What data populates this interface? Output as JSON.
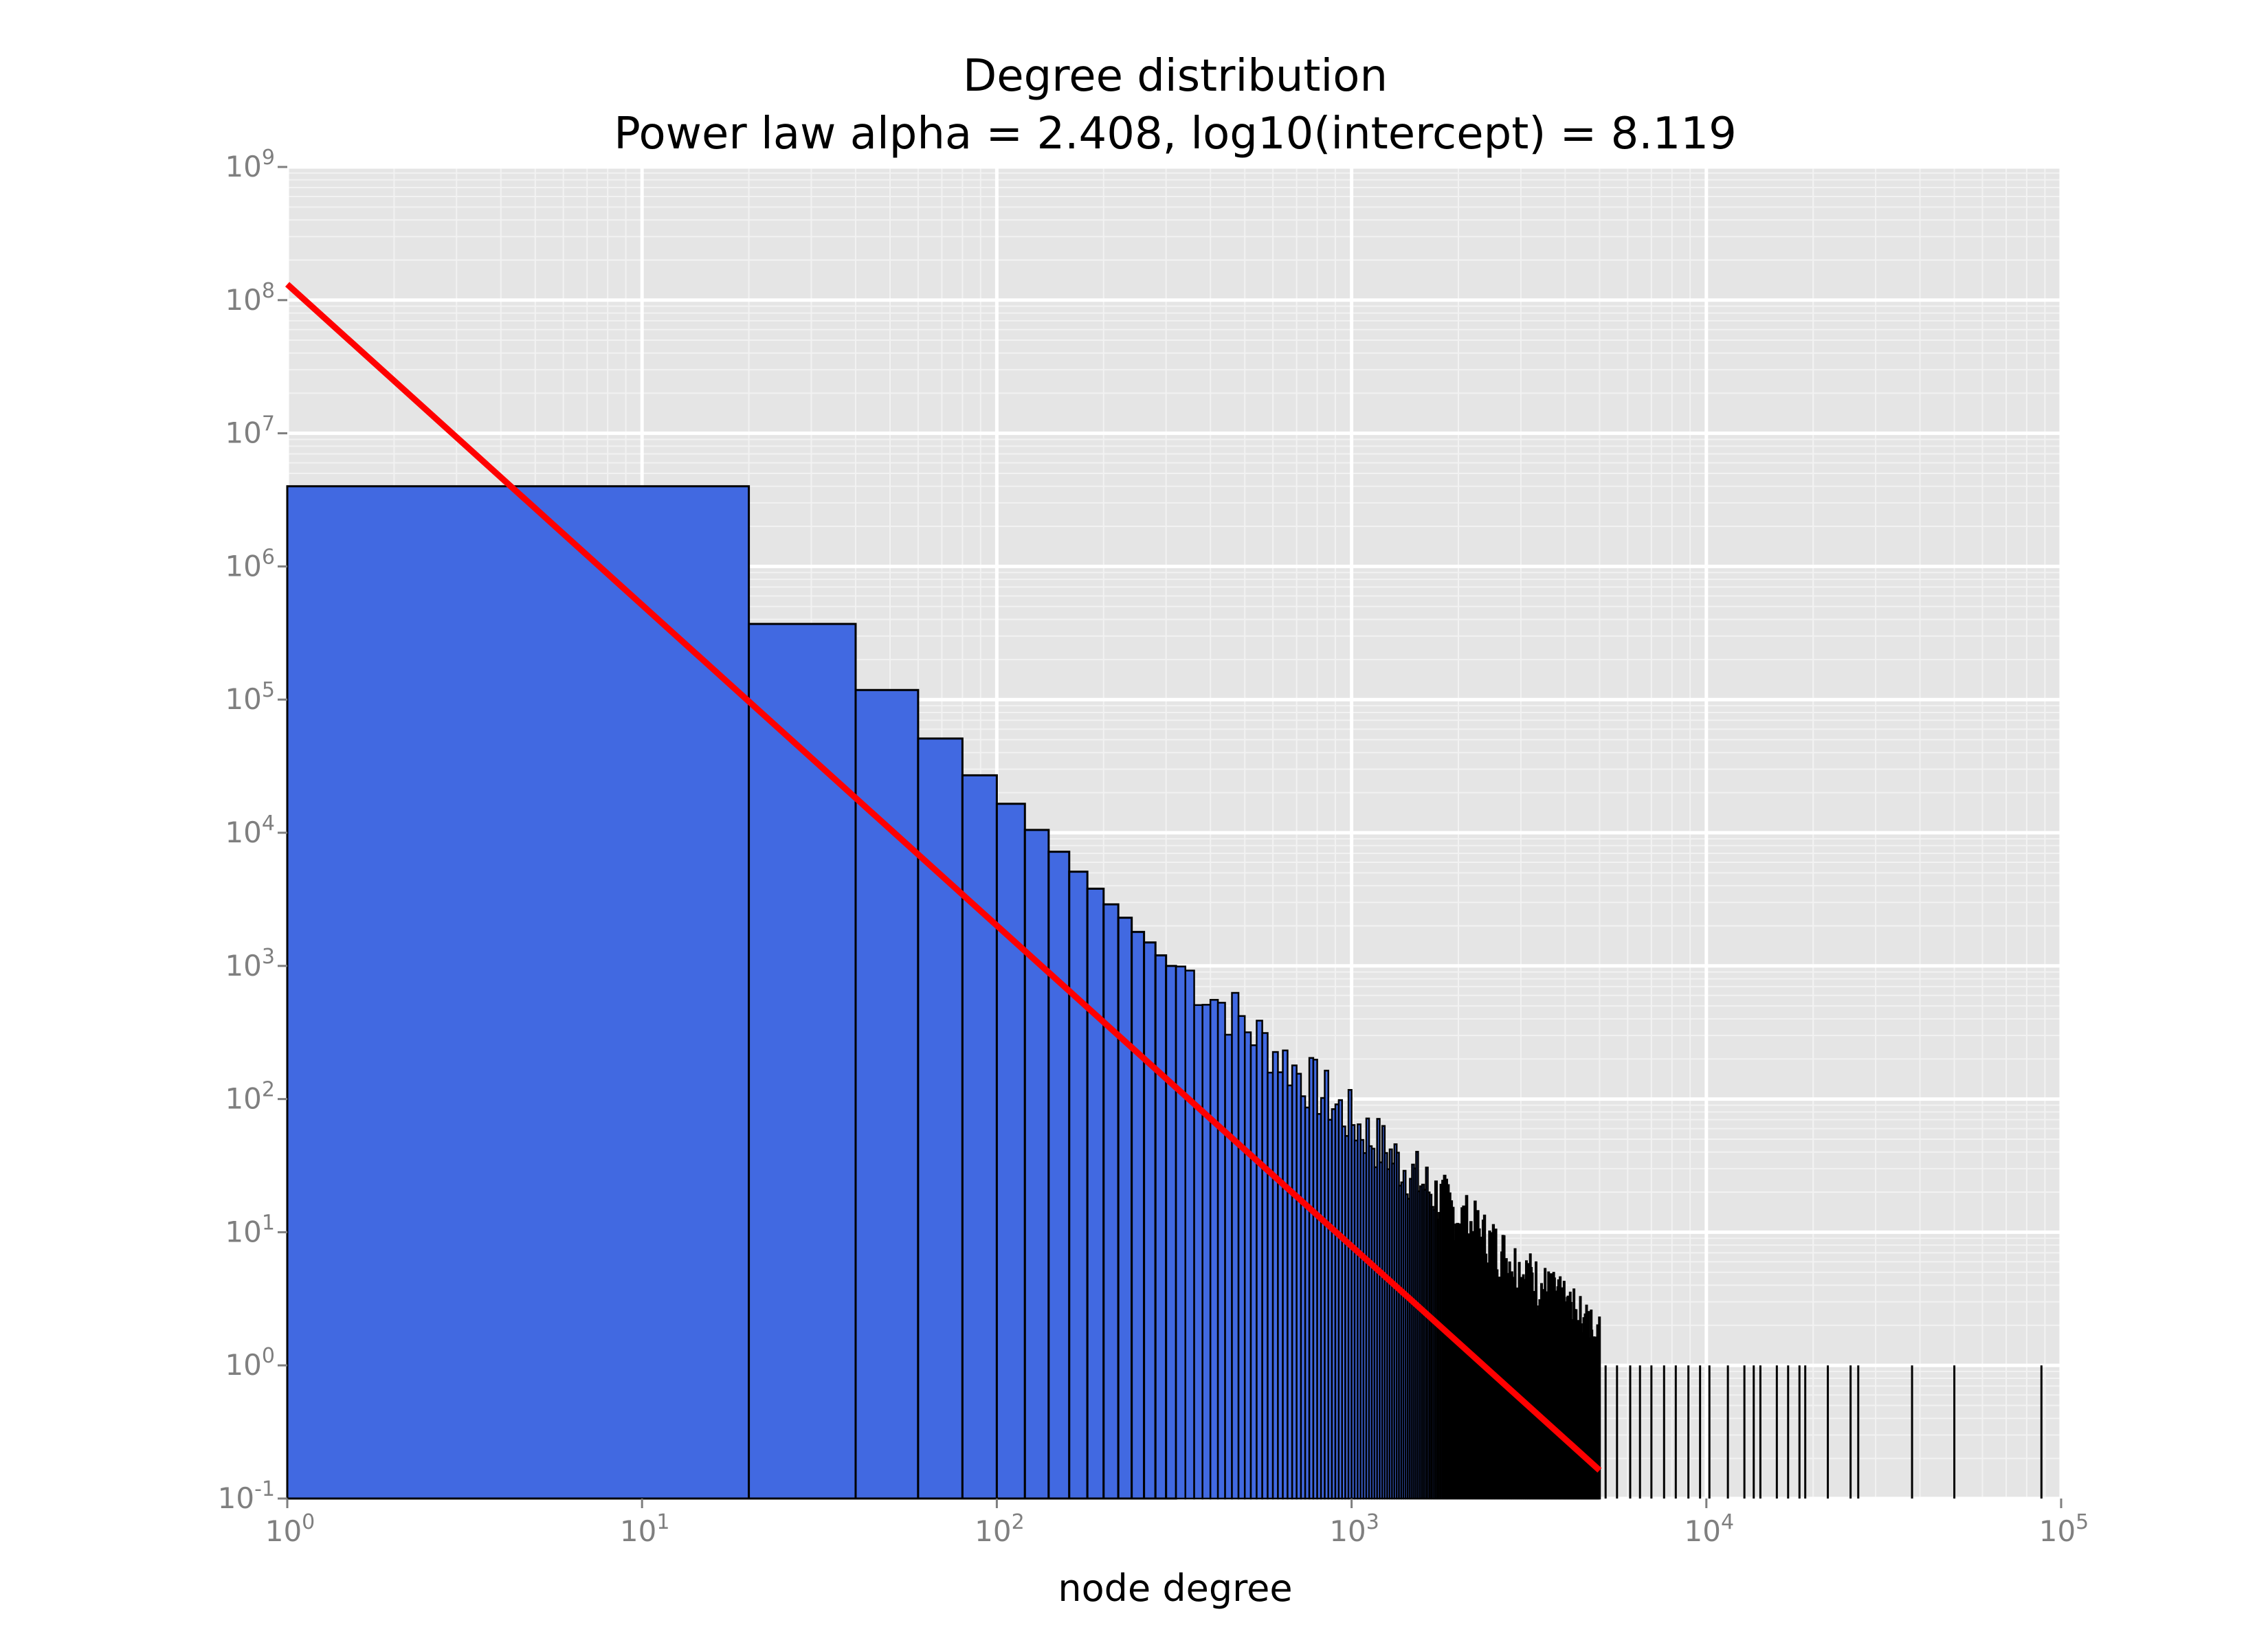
{
  "chart_data": {
    "type": "bar",
    "title": "Degree distribution",
    "subtitle": "Power law alpha = 2.408, log10(intercept) = 8.119",
    "xlabel": "node degree",
    "ylabel": "",
    "xscale": "log",
    "yscale": "log",
    "xlim": [
      1,
      100000
    ],
    "ylim": [
      0.1,
      1000000000
    ],
    "grid": true,
    "legend": "none",
    "x_ticks": [
      {
        "base": "10",
        "exp": "0"
      },
      {
        "base": "10",
        "exp": "1"
      },
      {
        "base": "10",
        "exp": "2"
      },
      {
        "base": "10",
        "exp": "3"
      },
      {
        "base": "10",
        "exp": "4"
      },
      {
        "base": "10",
        "exp": "5"
      }
    ],
    "y_ticks": [
      {
        "base": "10",
        "exp": "-1"
      },
      {
        "base": "10",
        "exp": "0"
      },
      {
        "base": "10",
        "exp": "1"
      },
      {
        "base": "10",
        "exp": "2"
      },
      {
        "base": "10",
        "exp": "3"
      },
      {
        "base": "10",
        "exp": "4"
      },
      {
        "base": "10",
        "exp": "5"
      },
      {
        "base": "10",
        "exp": "6"
      },
      {
        "base": "10",
        "exp": "7"
      },
      {
        "base": "10",
        "exp": "8"
      },
      {
        "base": "10",
        "exp": "9"
      }
    ],
    "bin_width": 20,
    "bins": [
      {
        "x0": 1,
        "x1": 20,
        "count": 4000000
      },
      {
        "x0": 20,
        "x1": 40,
        "count": 370000
      },
      {
        "x0": 40,
        "x1": 60,
        "count": 118000
      },
      {
        "x0": 60,
        "x1": 80,
        "count": 51000
      },
      {
        "x0": 80,
        "x1": 100,
        "count": 27000
      },
      {
        "x0": 100,
        "x1": 120,
        "count": 16500
      },
      {
        "x0": 120,
        "x1": 140,
        "count": 10500
      },
      {
        "x0": 140,
        "x1": 160,
        "count": 7200
      },
      {
        "x0": 160,
        "x1": 180,
        "count": 5100
      },
      {
        "x0": 180,
        "x1": 200,
        "count": 3800
      },
      {
        "x0": 200,
        "x1": 220,
        "count": 2900
      },
      {
        "x0": 220,
        "x1": 240,
        "count": 2300
      },
      {
        "x0": 240,
        "x1": 260,
        "count": 1800
      },
      {
        "x0": 260,
        "x1": 280,
        "count": 1500
      },
      {
        "x0": 280,
        "x1": 300,
        "count": 1200
      },
      {
        "x0": 300,
        "x1": 320,
        "count": 1000
      }
    ],
    "tail_fit": {
      "x_start": 320,
      "x_end": 5000,
      "count_start": 1000,
      "count_end": 1.5
    },
    "sparse_spikes_x": [
      5200,
      5600,
      6100,
      6500,
      7000,
      7600,
      8200,
      8900,
      9600,
      10200,
      11500,
      12800,
      13600,
      14200,
      15800,
      17000,
      18300,
      19000,
      22000,
      25500,
      26800,
      38000,
      50000,
      88000
    ],
    "fit_line": {
      "alpha": 2.408,
      "log10_intercept": 8.119,
      "x_start": 1,
      "x_end": 5000,
      "color": "#ff0000"
    },
    "colors": {
      "bar_fill": "#4169e1",
      "bar_stroke": "#000000",
      "panel_bg": "#e5e5e5",
      "grid_major": "#ffffff",
      "grid_minor": "#f2f2f2",
      "fit_line": "#ff0000"
    }
  }
}
